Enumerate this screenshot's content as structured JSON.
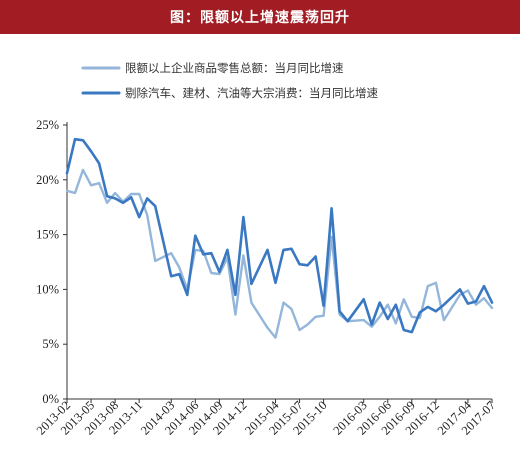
{
  "header": {
    "title": "图：限额以上增速震荡回升"
  },
  "colors": {
    "header_bg": "#a11d23",
    "series1": "#94b6da",
    "series2": "#3a78c2",
    "axis": "#333333"
  },
  "chart_data": {
    "type": "line",
    "title": "图：限额以上增速震荡回升",
    "xlabel": "",
    "ylabel": "",
    "ylim": [
      0,
      25
    ],
    "yticks": [
      "0%",
      "5%",
      "10%",
      "15%",
      "20%",
      "25%"
    ],
    "xticks": [
      "2013-02",
      "2013-05",
      "2013-08",
      "2013-11",
      "2014-03",
      "2014-06",
      "2014-09",
      "2014-12",
      "2015-04",
      "2015-07",
      "2015-10",
      "2016-03",
      "2016-06",
      "2016-09",
      "2016-12",
      "2017-04",
      "2017-07"
    ],
    "grid": false,
    "legend": "top",
    "x": [
      "2013-02",
      "2013-03",
      "2013-04",
      "2013-05",
      "2013-06",
      "2013-07",
      "2013-08",
      "2013-09",
      "2013-10",
      "2013-11",
      "2013-12",
      "2014-01",
      "2014-03",
      "2014-04",
      "2014-05",
      "2014-06",
      "2014-07",
      "2014-08",
      "2014-09",
      "2014-10",
      "2014-11",
      "2014-12",
      "2015-01",
      "2015-03",
      "2015-04",
      "2015-05",
      "2015-06",
      "2015-07",
      "2015-08",
      "2015-09",
      "2015-10",
      "2015-11",
      "2015-12",
      "2016-01",
      "2016-03",
      "2016-04",
      "2016-05",
      "2016-06",
      "2016-07",
      "2016-08",
      "2016-09",
      "2016-10",
      "2016-11",
      "2016-12",
      "2017-01",
      "2017-03",
      "2017-04",
      "2017-05",
      "2017-06",
      "2017-07"
    ],
    "series": [
      {
        "name": "限额以上企业商品零售总额：当月同比增速",
        "values": [
          19.0,
          18.8,
          20.9,
          19.5,
          19.7,
          17.9,
          18.8,
          18.0,
          18.7,
          18.7,
          16.8,
          12.6,
          13.3,
          12.0,
          10.0,
          13.6,
          13.5,
          11.5,
          11.4,
          12.9,
          7.7,
          13.1,
          8.8,
          6.5,
          5.6,
          8.8,
          8.2,
          6.3,
          6.8,
          7.5,
          7.6,
          14.8,
          7.7,
          7.1,
          7.2,
          6.6,
          7.5,
          8.6,
          6.9,
          9.1,
          7.5,
          7.4,
          10.3,
          10.6,
          7.2,
          9.5,
          9.9,
          8.6,
          9.2,
          8.3
        ]
      },
      {
        "name": "剔除汽车、建材、汽油等大宗消费：当月同比增速",
        "values": [
          20.6,
          23.7,
          23.6,
          22.6,
          21.5,
          18.5,
          18.3,
          17.9,
          18.4,
          16.6,
          18.3,
          17.6,
          11.2,
          11.4,
          9.5,
          14.9,
          13.2,
          13.3,
          11.6,
          13.6,
          9.5,
          16.6,
          10.5,
          13.6,
          10.6,
          13.6,
          13.7,
          12.3,
          12.2,
          13.0,
          8.5,
          17.4,
          8.0,
          7.1,
          9.1,
          6.8,
          8.8,
          7.3,
          8.6,
          6.3,
          6.1,
          7.9,
          8.4,
          8.0,
          8.6,
          10.0,
          8.7,
          8.9,
          10.3,
          8.8
        ]
      }
    ]
  }
}
